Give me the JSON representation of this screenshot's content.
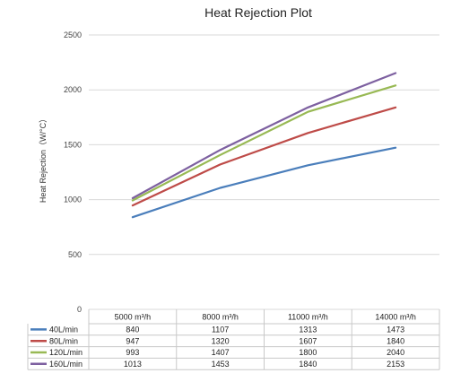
{
  "chart_data": {
    "type": "line",
    "title": "Heat Rejection Plot",
    "ylabel": "Heat Rejection（W/°C）",
    "xlabel": "",
    "ylim": [
      0,
      2500
    ],
    "yticks": [
      0,
      500,
      1000,
      1500,
      2000,
      2500
    ],
    "grid": true,
    "legend": "table-bottom",
    "categories": [
      "5000 m³/h",
      "8000 m³/h",
      "11000 m³/h",
      "14000 m³/h"
    ],
    "series": [
      {
        "name": "40L/min",
        "color": "#4a7ebb",
        "values": [
          840,
          1107,
          1313,
          1473
        ]
      },
      {
        "name": "80L/min",
        "color": "#be4b48",
        "values": [
          947,
          1320,
          1607,
          1840
        ]
      },
      {
        "name": "120L/min",
        "color": "#98b954",
        "values": [
          993,
          1407,
          1800,
          2040
        ]
      },
      {
        "name": "160L/min",
        "color": "#7d60a0",
        "values": [
          1013,
          1453,
          1840,
          2153
        ]
      }
    ]
  }
}
